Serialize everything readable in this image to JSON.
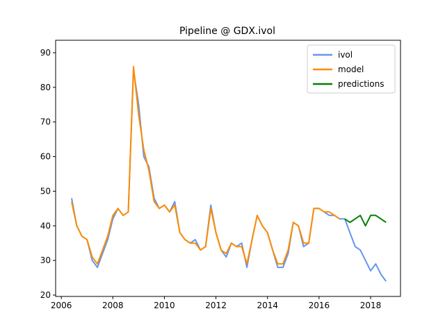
{
  "chart_data": {
    "type": "line",
    "title": "Pipeline @ GDX.ivol",
    "x": [
      2006.4,
      2006.6,
      2006.8,
      2007.0,
      2007.2,
      2007.4,
      2007.6,
      2007.8,
      2008.0,
      2008.2,
      2008.4,
      2008.6,
      2008.8,
      2009.0,
      2009.2,
      2009.4,
      2009.6,
      2009.8,
      2010.0,
      2010.2,
      2010.4,
      2010.6,
      2010.8,
      2011.0,
      2011.2,
      2011.4,
      2011.6,
      2011.8,
      2012.0,
      2012.2,
      2012.4,
      2012.6,
      2012.8,
      2013.0,
      2013.2,
      2013.4,
      2013.6,
      2013.8,
      2014.0,
      2014.2,
      2014.4,
      2014.6,
      2014.8,
      2015.0,
      2015.2,
      2015.4,
      2015.6,
      2015.8,
      2016.0,
      2016.2,
      2016.4,
      2016.6,
      2016.8,
      2017.0,
      2017.2,
      2017.4,
      2017.6,
      2017.8,
      2018.0,
      2018.2,
      2018.4,
      2018.6
    ],
    "series": [
      {
        "name": "ivol",
        "color": "#6495ed",
        "values": [
          48,
          40,
          37,
          36,
          30,
          28,
          32,
          36,
          42,
          45,
          43,
          44,
          85,
          75,
          60,
          57,
          48,
          45,
          46,
          44,
          47,
          38,
          36,
          35,
          36,
          33,
          34,
          46,
          38,
          33,
          31,
          35,
          34,
          35,
          28,
          36,
          43,
          40,
          38,
          33,
          28,
          28,
          32,
          41,
          40,
          34,
          35,
          45,
          45,
          44,
          43,
          43,
          42,
          42,
          38,
          34,
          33,
          30,
          27,
          29,
          26,
          24
        ]
      },
      {
        "name": "model",
        "color": "#ff8c00",
        "values": [
          47,
          40,
          37,
          36,
          31,
          29,
          33,
          37,
          43,
          45,
          43,
          44,
          86,
          72,
          62,
          56,
          47,
          45,
          46,
          44,
          46,
          38,
          36,
          35,
          35,
          33,
          34,
          45,
          38,
          33,
          32,
          35,
          34,
          34,
          29,
          36,
          43,
          40,
          38,
          33,
          29,
          29,
          33,
          41,
          40,
          35,
          35,
          45,
          45,
          44,
          44,
          43,
          42,
          null,
          null,
          null,
          null,
          null,
          null,
          null,
          null,
          null
        ]
      },
      {
        "name": "predictions",
        "color": "#008000",
        "values": [
          null,
          null,
          null,
          null,
          null,
          null,
          null,
          null,
          null,
          null,
          null,
          null,
          null,
          null,
          null,
          null,
          null,
          null,
          null,
          null,
          null,
          null,
          null,
          null,
          null,
          null,
          null,
          null,
          null,
          null,
          null,
          null,
          null,
          null,
          null,
          null,
          null,
          null,
          null,
          null,
          null,
          null,
          null,
          null,
          null,
          null,
          null,
          null,
          null,
          null,
          null,
          null,
          null,
          42,
          41,
          42,
          43,
          40,
          43,
          43,
          42,
          41
        ]
      }
    ],
    "xlim": [
      2005.78,
      2019.16
    ],
    "ylim": [
      19.6,
      93.6
    ],
    "xticks": [
      2006,
      2008,
      2010,
      2012,
      2014,
      2016,
      2018
    ],
    "yticks": [
      20,
      30,
      40,
      50,
      60,
      70,
      80,
      90
    ],
    "legend": "upper right",
    "grid": false
  }
}
